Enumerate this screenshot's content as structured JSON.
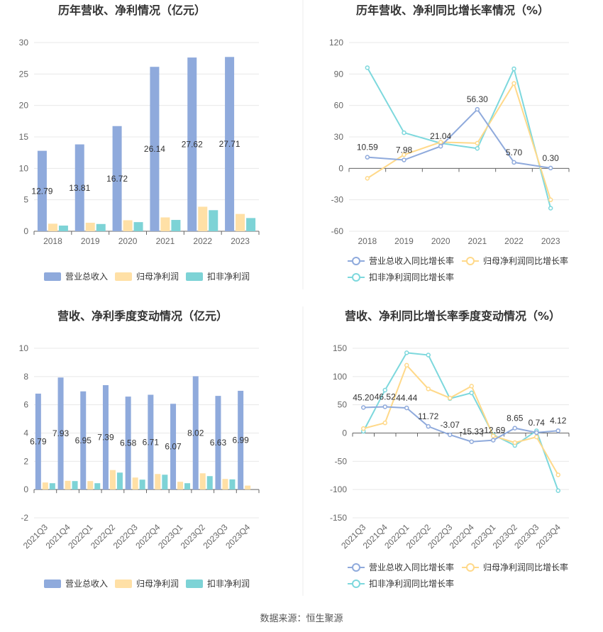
{
  "source_text": "数据来源：恒生聚源",
  "legend_bar": [
    "营业总收入",
    "归母净利润",
    "扣非净利润"
  ],
  "legend_line": [
    "营业总收入同比增长率",
    "归母净利润同比增长率",
    "扣非净利润同比增长率"
  ],
  "colors": {
    "revenue": "#8faadc",
    "net": "#ffe0a6",
    "deducted": "#7dd3d6",
    "revenue_line": "#8faadc",
    "net_line": "#ffd98a",
    "deducted_line": "#7dd8dd"
  },
  "chart_data": [
    {
      "type": "bar",
      "title": "历年营收、净利情况（亿元）",
      "categories": [
        "2018",
        "2019",
        "2020",
        "2021",
        "2022",
        "2023"
      ],
      "ylim": [
        0,
        30
      ],
      "yticks": [
        0,
        5,
        10,
        15,
        20,
        25,
        30
      ],
      "series": [
        {
          "name": "营业总收入",
          "values": [
            12.79,
            13.81,
            16.72,
            26.14,
            27.62,
            27.71
          ],
          "labels": [
            "12.79",
            "13.81",
            "16.72",
            "26.14",
            "27.62",
            "27.71"
          ]
        },
        {
          "name": "归母净利润",
          "values": [
            1.2,
            1.35,
            1.75,
            2.2,
            3.9,
            2.75
          ]
        },
        {
          "name": "扣非净利润",
          "values": [
            0.9,
            1.15,
            1.45,
            1.8,
            3.35,
            2.1
          ]
        }
      ]
    },
    {
      "type": "line",
      "title": "历年营收、净利同比增长率情况（%）",
      "categories": [
        "2018",
        "2019",
        "2020",
        "2021",
        "2022",
        "2023"
      ],
      "ylim": [
        -60,
        120
      ],
      "yticks": [
        -60,
        -30,
        0,
        30,
        60,
        90,
        120
      ],
      "series": [
        {
          "name": "营业总收入同比增长率",
          "values": [
            10.59,
            7.98,
            21.04,
            56.3,
            5.7,
            0.3
          ],
          "labels": [
            "10.59",
            "7.98",
            "21.04",
            "56.30",
            "5.70",
            "0.30"
          ]
        },
        {
          "name": "归母净利润同比增长率",
          "values": [
            -9.5,
            13,
            25,
            24,
            81,
            -30
          ]
        },
        {
          "name": "扣非净利润同比增长率",
          "values": [
            96,
            34,
            24,
            19,
            95,
            -38
          ]
        }
      ]
    },
    {
      "type": "bar",
      "title": "营收、净利季度变动情况（亿元）",
      "categories": [
        "2021Q3",
        "2021Q4",
        "2022Q1",
        "2022Q2",
        "2022Q3",
        "2022Q4",
        "2023Q1",
        "2023Q2",
        "2023Q3",
        "2023Q4"
      ],
      "ylim": [
        -2,
        10
      ],
      "yticks": [
        -2,
        0,
        2,
        4,
        6,
        8,
        10
      ],
      "series": [
        {
          "name": "营业总收入",
          "values": [
            6.79,
            7.93,
            6.95,
            7.39,
            6.58,
            6.71,
            6.07,
            8.02,
            6.63,
            6.99
          ],
          "labels": [
            "6.79",
            "7.93",
            "6.95",
            "7.39",
            "6.58",
            "6.71",
            "6.07",
            "8.02",
            "6.63",
            "6.99"
          ]
        },
        {
          "name": "归母净利润",
          "values": [
            0.5,
            0.62,
            0.6,
            1.38,
            0.85,
            1.1,
            0.55,
            1.15,
            0.75,
            0.28
          ]
        },
        {
          "name": "扣非净利润",
          "values": [
            0.45,
            0.6,
            0.45,
            1.2,
            0.7,
            1.05,
            0.45,
            0.95,
            0.72,
            0
          ]
        }
      ]
    },
    {
      "type": "line",
      "title": "营收、净利同比增长率季度变动情况（%）",
      "categories": [
        "2021Q3",
        "2021Q4",
        "2022Q1",
        "2022Q2",
        "2022Q3",
        "2022Q4",
        "2023Q1",
        "2023Q2",
        "2023Q3",
        "2023Q4"
      ],
      "ylim": [
        -150,
        150
      ],
      "yticks": [
        -150,
        -100,
        -50,
        0,
        50,
        100,
        150
      ],
      "series": [
        {
          "name": "营业总收入同比增长率",
          "values": [
            45.2,
            46.52,
            44.44,
            11.72,
            -3.07,
            -15.33,
            -12.69,
            8.65,
            0.74,
            4.12
          ],
          "labels": [
            "45.20",
            "46.52",
            "44.44",
            "11.72",
            "-3.07",
            "-15.33",
            "-12.69",
            "8.65",
            "0.74",
            "4.12"
          ]
        },
        {
          "name": "归母净利润同比增长率",
          "values": [
            8,
            18,
            120,
            78,
            62,
            83,
            -5,
            -17,
            -7,
            -74
          ]
        },
        {
          "name": "扣非净利润同比增长率",
          "values": [
            3,
            76,
            142,
            138,
            61,
            71,
            -3,
            -22,
            4,
            -102
          ]
        }
      ]
    }
  ]
}
